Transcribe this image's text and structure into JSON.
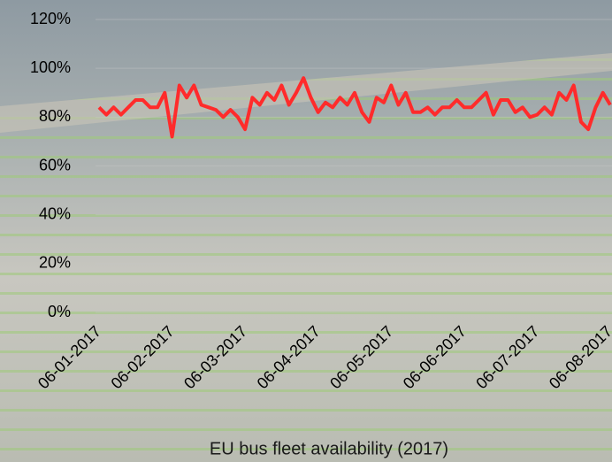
{
  "chart_data": {
    "type": "line",
    "title": "EU bus fleet availability (2017)",
    "categories": [
      "06-01-2017",
      null,
      null,
      null,
      null,
      null,
      null,
      null,
      null,
      null,
      "06-02-2017",
      null,
      null,
      null,
      null,
      null,
      null,
      null,
      null,
      null,
      "06-03-2017",
      null,
      null,
      null,
      null,
      null,
      null,
      null,
      null,
      null,
      "06-04-2017",
      null,
      null,
      null,
      null,
      null,
      null,
      null,
      null,
      null,
      "06-05-2017",
      null,
      null,
      null,
      null,
      null,
      null,
      null,
      null,
      null,
      "06-06-2017",
      null,
      null,
      null,
      null,
      null,
      null,
      null,
      null,
      null,
      "06-07-2017",
      null,
      null,
      null,
      null,
      null,
      null,
      null,
      null,
      null,
      "06-08-2017"
    ],
    "values": [
      84,
      81,
      84,
      81,
      84,
      87,
      87,
      84,
      84,
      90,
      72,
      93,
      88,
      93,
      85,
      84,
      83,
      80,
      83,
      80,
      75,
      88,
      85,
      90,
      87,
      93,
      85,
      90,
      96,
      88,
      82,
      86,
      84,
      88,
      85,
      90,
      82,
      78,
      88,
      86,
      93,
      85,
      90,
      82,
      82,
      84,
      81,
      84,
      84,
      87,
      84,
      84,
      87,
      90,
      81,
      87,
      87,
      82,
      84,
      80,
      81,
      84,
      81,
      90,
      87,
      93,
      78,
      75,
      84,
      90,
      85
    ],
    "color": "#ff2b2b",
    "ylim": [
      0,
      120
    ],
    "yticks": [
      {
        "value": 0,
        "label": "0%"
      },
      {
        "value": 20,
        "label": "20%"
      },
      {
        "value": 40,
        "label": "40%"
      },
      {
        "value": 60,
        "label": "60%"
      },
      {
        "value": 80,
        "label": "80%"
      },
      {
        "value": 100,
        "label": "100%"
      },
      {
        "value": 120,
        "label": "120%"
      }
    ],
    "grid": true
  }
}
